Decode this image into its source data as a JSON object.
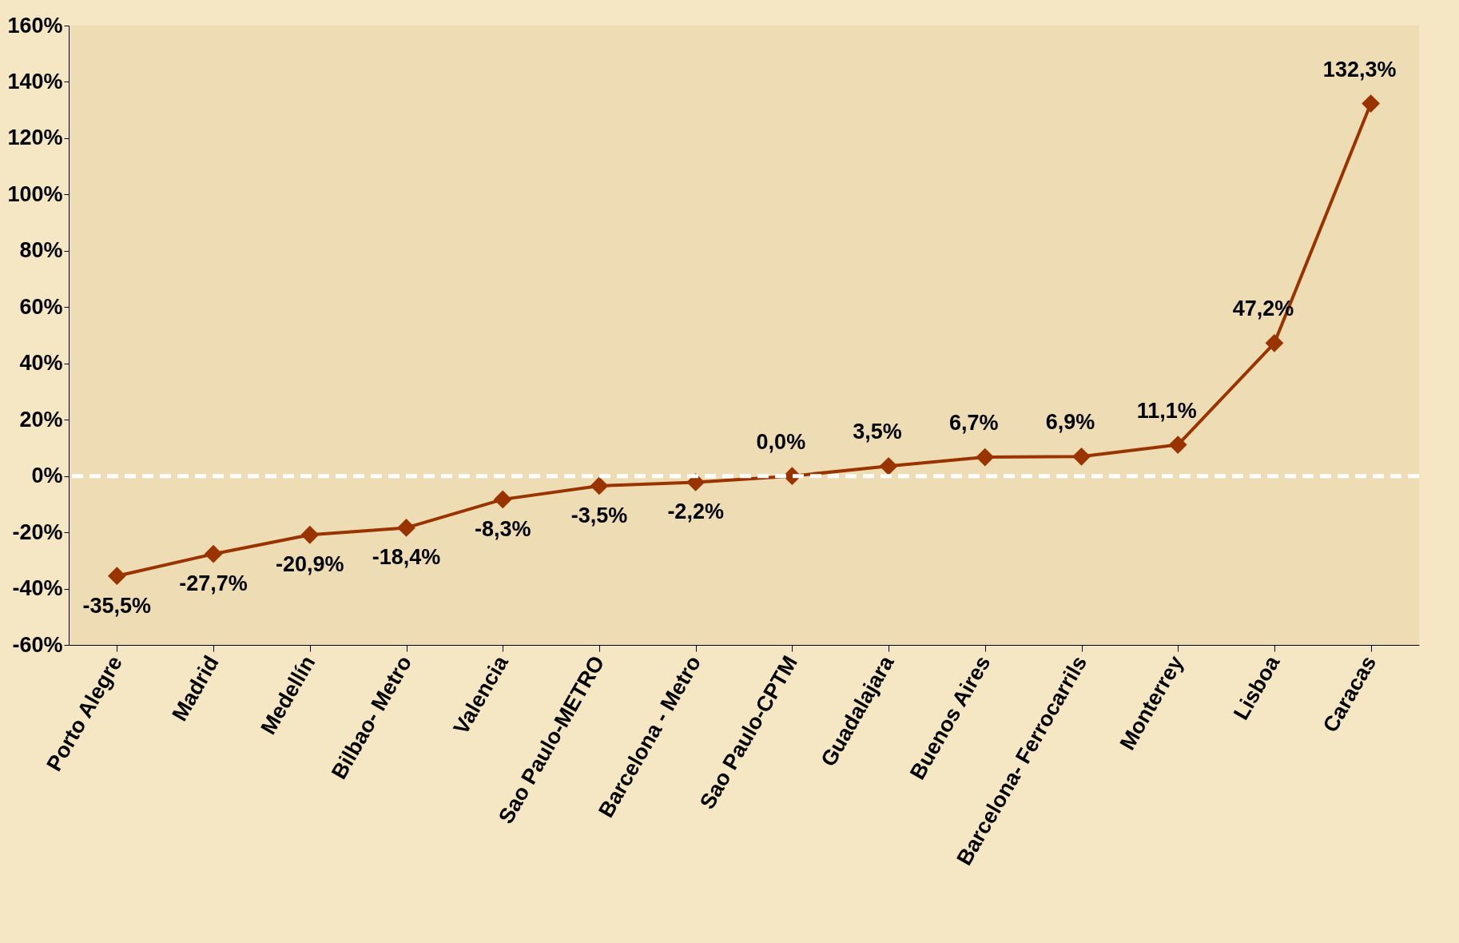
{
  "chart_data": {
    "type": "line",
    "categories": [
      "Porto Alegre",
      "Madrid",
      "Medellín",
      "Bilbao- Metro",
      "Valencia",
      "Sao Paulo-METRO",
      "Barcelona - Metro",
      "Sao Paulo-CPTM",
      "Guadalajara",
      "Buenos Aires",
      "Barcelona- Ferrocarrils",
      "Monterrey",
      "Lisboa",
      "Caracas"
    ],
    "series": [
      {
        "color": "#993300",
        "values": [
          -35.5,
          -27.7,
          -20.9,
          -18.4,
          -8.3,
          -3.5,
          -2.2,
          0.0,
          3.5,
          6.7,
          6.9,
          11.1,
          47.2,
          132.3
        ],
        "value_labels": [
          "-35,5%",
          "-27,7%",
          "-20,9%",
          "-18,4%",
          "-8,3%",
          "-3,5%",
          "-2,2%",
          "0,0%",
          "3,5%",
          "6,7%",
          "6,9%",
          "11,1%",
          "47,2%",
          "132,3%"
        ]
      }
    ],
    "ylim": [
      -60,
      160
    ],
    "yticks": [
      {
        "value": -60,
        "label": "-60%"
      },
      {
        "value": -40,
        "label": "-40%"
      },
      {
        "value": -20,
        "label": "-20%"
      },
      {
        "value": 0,
        "label": "0%"
      },
      {
        "value": 20,
        "label": "20%"
      },
      {
        "value": 40,
        "label": "40%"
      },
      {
        "value": 60,
        "label": "60%"
      },
      {
        "value": 80,
        "label": "80%"
      },
      {
        "value": 100,
        "label": "100%"
      },
      {
        "value": 120,
        "label": "120%"
      },
      {
        "value": 140,
        "label": "140%"
      },
      {
        "value": 160,
        "label": "160%"
      }
    ],
    "marker": "diamond",
    "line_style": "solid",
    "grid": false,
    "ref_lines": [
      {
        "axis": "y",
        "value": 0,
        "color": "#ffffff",
        "line_style": "dashed"
      }
    ]
  }
}
